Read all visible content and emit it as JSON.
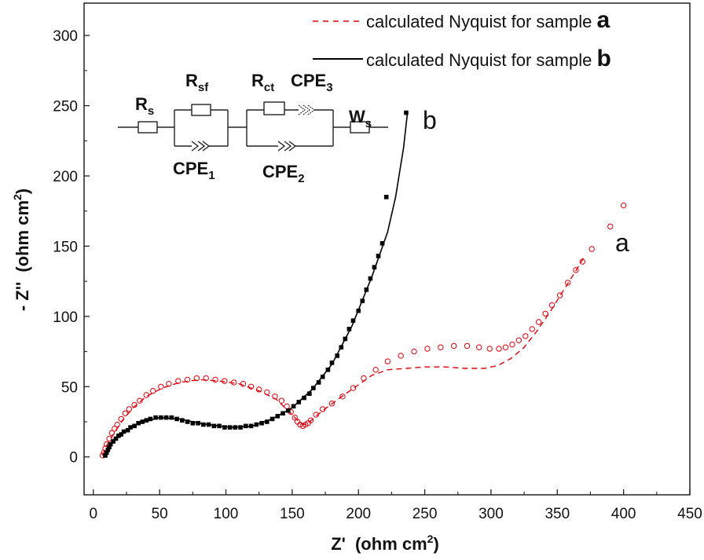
{
  "chart_data": {
    "type": "scatter",
    "xlabel": "Z'",
    "xlabel_unit": "(ohm cm",
    "xlabel_unit_sup": "2",
    "xlabel_unit_end": ")",
    "ylabel": "- Z''",
    "ylabel_unit": "(ohm cm",
    "ylabel_unit_sup": "2",
    "ylabel_unit_end": ")",
    "xlim": [
      -7,
      450
    ],
    "ylim": [
      -27,
      323
    ],
    "xticks": [
      0,
      50,
      100,
      150,
      200,
      250,
      300,
      350,
      400,
      450
    ],
    "yticks": [
      0,
      50,
      100,
      150,
      200,
      250,
      300
    ],
    "legend_position": "top-right",
    "legend": [
      {
        "text": "calculated Nyquist for sample ",
        "letter": "a",
        "color": "#e0000a",
        "style": "dashed"
      },
      {
        "text": "calculated Nyquist for sample ",
        "letter": "b",
        "color": "#000000",
        "style": "solid"
      }
    ],
    "series_tags": {
      "a": "a",
      "b": "b"
    },
    "series": [
      {
        "id": "a",
        "color": "#e0000a",
        "marker": "open-circle",
        "points": [
          [
            7,
            1
          ],
          [
            8,
            3
          ],
          [
            9,
            6
          ],
          [
            10,
            9
          ],
          [
            12,
            13
          ],
          [
            14,
            17
          ],
          [
            16,
            20
          ],
          [
            18,
            23
          ],
          [
            21,
            27
          ],
          [
            24,
            31
          ],
          [
            27,
            34
          ],
          [
            31,
            37
          ],
          [
            35,
            40
          ],
          [
            40,
            44
          ],
          [
            45,
            47
          ],
          [
            51,
            50
          ],
          [
            57,
            52
          ],
          [
            64,
            54
          ],
          [
            71,
            55
          ],
          [
            78,
            56
          ],
          [
            85,
            56
          ],
          [
            92,
            55
          ],
          [
            99,
            54
          ],
          [
            106,
            53
          ],
          [
            113,
            52
          ],
          [
            119,
            50
          ],
          [
            125,
            48
          ],
          [
            131,
            46
          ],
          [
            137,
            43
          ],
          [
            142,
            40
          ],
          [
            146,
            36
          ],
          [
            149,
            32
          ],
          [
            152,
            28
          ],
          [
            154,
            25
          ],
          [
            156,
            23
          ],
          [
            158,
            22
          ],
          [
            160,
            23
          ],
          [
            162,
            24
          ],
          [
            164,
            26
          ],
          [
            168,
            30
          ],
          [
            173,
            34
          ],
          [
            180,
            38
          ],
          [
            188,
            43
          ],
          [
            196,
            49
          ],
          [
            204,
            56
          ],
          [
            213,
            62
          ],
          [
            222,
            68
          ],
          [
            232,
            72
          ],
          [
            242,
            75
          ],
          [
            252,
            77
          ],
          [
            262,
            78
          ],
          [
            272,
            79
          ],
          [
            282,
            79
          ],
          [
            291,
            78
          ],
          [
            299,
            77
          ],
          [
            306,
            77
          ],
          [
            311,
            78
          ],
          [
            316,
            80
          ],
          [
            321,
            83
          ],
          [
            326,
            86
          ],
          [
            331,
            91
          ],
          [
            336,
            96
          ],
          [
            341,
            102
          ],
          [
            346,
            108
          ],
          [
            352,
            115
          ],
          [
            358,
            124
          ],
          [
            364,
            133
          ],
          [
            369,
            139
          ],
          [
            376,
            148
          ],
          [
            390,
            164
          ],
          [
            400,
            179
          ]
        ],
        "fit_line": [
          [
            7,
            1
          ],
          [
            10,
            8
          ],
          [
            15,
            16
          ],
          [
            22,
            26
          ],
          [
            30,
            35
          ],
          [
            40,
            43
          ],
          [
            52,
            49
          ],
          [
            65,
            53
          ],
          [
            80,
            55
          ],
          [
            95,
            54
          ],
          [
            110,
            52
          ],
          [
            125,
            47
          ],
          [
            138,
            41
          ],
          [
            148,
            32
          ],
          [
            154,
            26
          ],
          [
            158,
            23
          ],
          [
            162,
            24
          ],
          [
            168,
            29
          ],
          [
            176,
            35
          ],
          [
            186,
            42
          ],
          [
            198,
            50
          ],
          [
            210,
            58
          ],
          [
            222,
            62
          ],
          [
            236,
            63
          ],
          [
            250,
            64
          ],
          [
            265,
            64
          ],
          [
            280,
            63
          ],
          [
            295,
            63
          ],
          [
            305,
            65
          ],
          [
            315,
            70
          ],
          [
            325,
            78
          ],
          [
            335,
            90
          ],
          [
            345,
            104
          ],
          [
            355,
            119
          ],
          [
            365,
            134
          ],
          [
            370,
            142
          ]
        ]
      },
      {
        "id": "b",
        "color": "#000000",
        "marker": "filled-square",
        "points": [
          [
            9,
            1
          ],
          [
            10,
            3
          ],
          [
            11,
            5
          ],
          [
            12,
            7
          ],
          [
            13,
            9
          ],
          [
            15,
            11
          ],
          [
            17,
            13
          ],
          [
            19,
            15
          ],
          [
            21,
            16
          ],
          [
            23,
            18
          ],
          [
            26,
            19
          ],
          [
            28,
            21
          ],
          [
            31,
            22
          ],
          [
            34,
            24
          ],
          [
            37,
            25
          ],
          [
            40,
            26
          ],
          [
            43,
            27
          ],
          [
            47,
            28
          ],
          [
            51,
            28
          ],
          [
            55,
            28
          ],
          [
            59,
            28
          ],
          [
            63,
            27
          ],
          [
            67,
            26
          ],
          [
            71,
            25
          ],
          [
            75,
            24
          ],
          [
            79,
            24
          ],
          [
            83,
            23
          ],
          [
            87,
            23
          ],
          [
            91,
            22
          ],
          [
            95,
            22
          ],
          [
            99,
            21
          ],
          [
            103,
            21
          ],
          [
            107,
            21
          ],
          [
            111,
            21
          ],
          [
            115,
            22
          ],
          [
            119,
            22
          ],
          [
            123,
            23
          ],
          [
            127,
            24
          ],
          [
            131,
            25
          ],
          [
            135,
            27
          ],
          [
            139,
            29
          ],
          [
            143,
            31
          ],
          [
            147,
            33
          ],
          [
            151,
            36
          ],
          [
            155,
            39
          ],
          [
            159,
            42
          ],
          [
            163,
            45
          ],
          [
            166,
            49
          ],
          [
            170,
            53
          ],
          [
            173,
            57
          ],
          [
            177,
            62
          ],
          [
            180,
            67
          ],
          [
            184,
            72
          ],
          [
            187,
            78
          ],
          [
            190,
            84
          ],
          [
            193,
            91
          ],
          [
            196,
            97
          ],
          [
            200,
            104
          ],
          [
            203,
            111
          ],
          [
            206,
            119
          ],
          [
            209,
            127
          ],
          [
            212,
            135
          ],
          [
            215,
            143
          ],
          [
            218,
            152
          ],
          [
            221,
            185
          ],
          [
            236,
            245
          ]
        ],
        "fit_line": [
          [
            9,
            1
          ],
          [
            15,
            12
          ],
          [
            25,
            19
          ],
          [
            35,
            24
          ],
          [
            50,
            28
          ],
          [
            65,
            27
          ],
          [
            80,
            24
          ],
          [
            95,
            22
          ],
          [
            105,
            21
          ],
          [
            120,
            22
          ],
          [
            135,
            27
          ],
          [
            150,
            35
          ],
          [
            165,
            48
          ],
          [
            180,
            66
          ],
          [
            195,
            93
          ],
          [
            210,
            128
          ],
          [
            222,
            160
          ],
          [
            228,
            185
          ],
          [
            234,
            220
          ],
          [
            237,
            245
          ]
        ]
      }
    ]
  },
  "circuit": {
    "rs": {
      "main": "R",
      "sub": "s"
    },
    "rsf": {
      "main": "R",
      "sub": "sf"
    },
    "rct": {
      "main": "R",
      "sub": "ct"
    },
    "cpe3": {
      "main": "CPE",
      "sub": "3"
    },
    "ws": {
      "main": "W",
      "sub": "s"
    },
    "cpe1": {
      "main": "CPE",
      "sub": "1"
    },
    "cpe2": {
      "main": "CPE",
      "sub": "2"
    }
  }
}
